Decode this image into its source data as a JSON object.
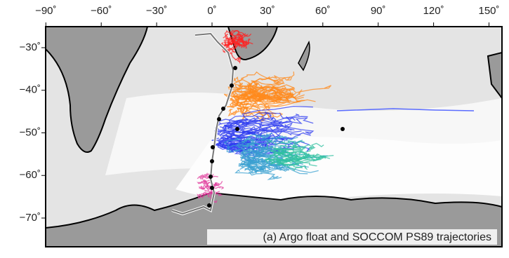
{
  "map": {
    "caption": "(a) Argo float and SOCCOM PS89 trajectories",
    "lon_ticks": [
      {
        "value": -90,
        "label": "−90˚"
      },
      {
        "value": -60,
        "label": "−60˚"
      },
      {
        "value": -30,
        "label": "−30˚"
      },
      {
        "value": 0,
        "label": "0˚"
      },
      {
        "value": 30,
        "label": "30˚"
      },
      {
        "value": 60,
        "label": "60˚"
      },
      {
        "value": 90,
        "label": "90˚"
      },
      {
        "value": 120,
        "label": "120˚"
      },
      {
        "value": 150,
        "label": "150˚"
      }
    ],
    "lat_ticks": [
      {
        "value": -30,
        "label": "−30˚"
      },
      {
        "value": -40,
        "label": "−40˚"
      },
      {
        "value": -50,
        "label": "−50˚"
      },
      {
        "value": -60,
        "label": "−60˚"
      },
      {
        "value": -70,
        "label": "−70˚"
      }
    ]
  }
}
